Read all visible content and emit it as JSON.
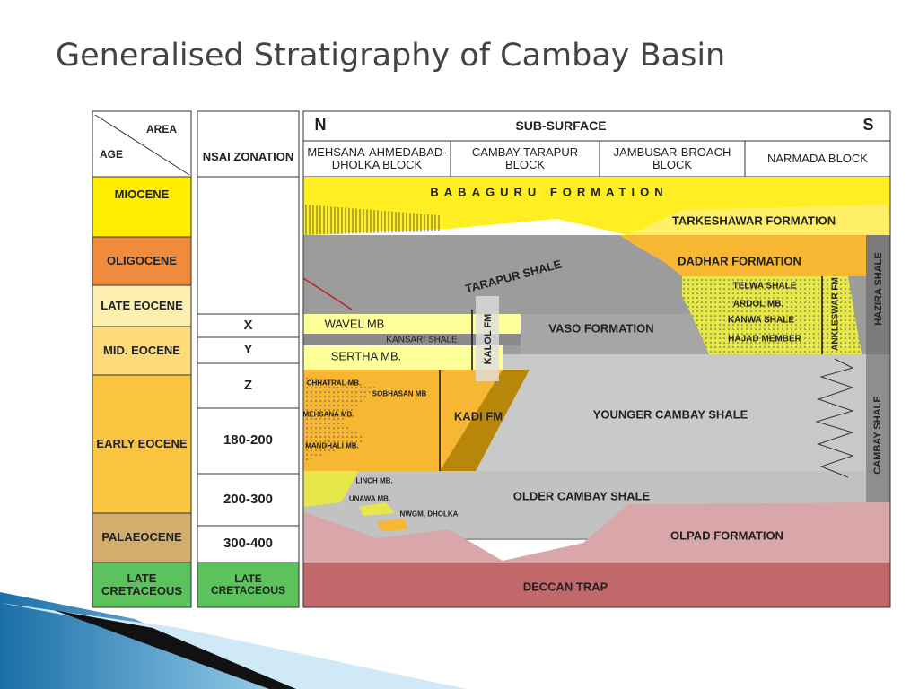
{
  "title": "Generalised Stratigraphy of Cambay Basin",
  "age_column": {
    "area_label": "AREA",
    "age_label": "AGE",
    "rows": [
      "MIOCENE",
      "OLIGOCENE",
      "LATE EOCENE",
      "MID. EOCENE",
      "EARLY EOCENE",
      "PALAEOCENE",
      "LATE CRETACEOUS"
    ]
  },
  "nsai_column": {
    "header": "NSAI ZONATION",
    "rows": [
      "X",
      "Y",
      "Z",
      "180-200",
      "200-300",
      "300-400",
      "LATE CRETACEOUS"
    ]
  },
  "section": {
    "north": "N",
    "title": "SUB-SURFACE",
    "south": "S",
    "blocks": [
      "MEHSANA-AHMEDABAD-DHOLKA BLOCK",
      "CAMBAY-TARAPUR BLOCK",
      "JAMBUSAR-BROACH BLOCK",
      "NARMADA BLOCK"
    ],
    "formations": [
      "BABAGURU FORMATION",
      "TARKESHAWAR FORMATION",
      "DADHAR FORMATION",
      "TARAPUR SHALE",
      "TELWA SHALE",
      "ARDOL MB.",
      "KANWA SHALE",
      "HAJAD MEMBER",
      "ANKLESWAR FM",
      "HAZIRA SHALE",
      "WAVEL MB",
      "KANSARI SHALE",
      "SERTHA MB.",
      "KALOL FM",
      "VASO FORMATION",
      "CHHATRAL MB.",
      "SOBHASAN MB",
      "MEHSANA MB.",
      "MANDHALI MB.",
      "KADI FM",
      "YOUNGER CAMBAY SHALE",
      "CAMBAY SHALE",
      "LINCH MB.",
      "UNAWA MB.",
      "NWGM, DHOLKA",
      "OLDER CAMBAY SHALE",
      "OLPAD FORMATION",
      "DECCAN TRAP"
    ]
  }
}
